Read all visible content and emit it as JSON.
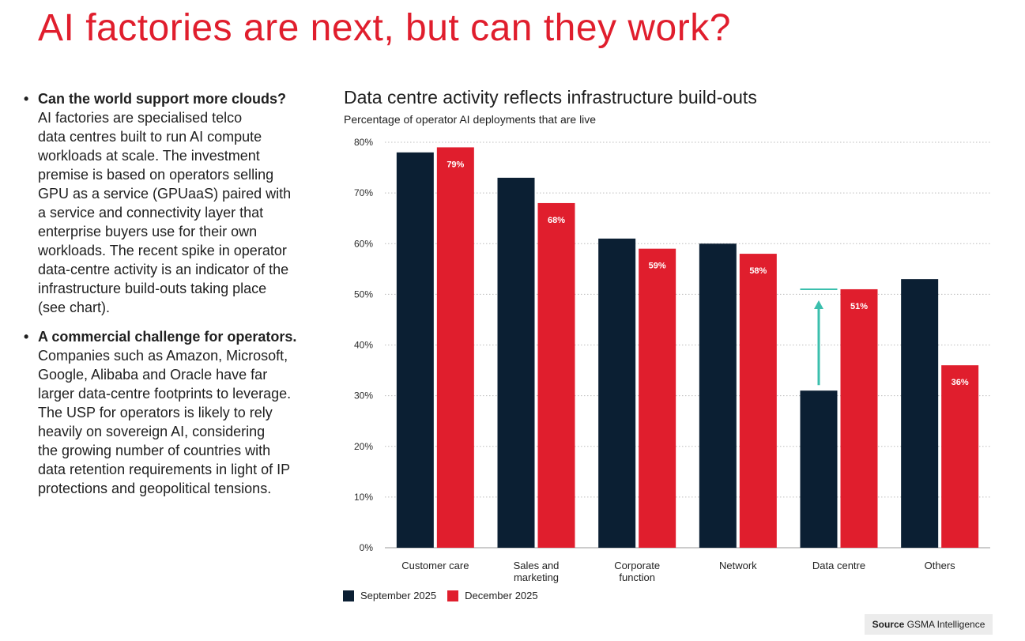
{
  "page": {
    "title": "AI factories are next, but can they work?"
  },
  "bullets": [
    {
      "lead": "Can the world support more clouds?",
      "lines": [
        "AI factories are specialised telco",
        "data centres built to run AI compute",
        "workloads at scale. The investment",
        "premise is based on operators selling",
        "GPU as a service (GPUaaS) paired with",
        "a service and connectivity layer that",
        "enterprise buyers use for their own",
        "workloads. The recent spike in operator",
        "data-centre activity is an indicator of the",
        "infrastructure build-outs taking place",
        "(see chart)."
      ]
    },
    {
      "lead": "A commercial challenge for operators.",
      "lines": [
        "Companies such as Amazon, Microsoft,",
        "Google, Alibaba and Oracle have far",
        "larger data-centre footprints to leverage.",
        "The USP for operators is likely to rely",
        "heavily on sovereign AI, considering",
        "the growing number of countries with",
        "data retention requirements in light of IP",
        "protections and geopolitical tensions."
      ]
    }
  ],
  "source": {
    "label": "Source",
    "value": "GSMA Intelligence"
  },
  "chart_data": {
    "type": "bar",
    "title": "Data centre activity reflects infrastructure build-outs",
    "subtitle": "Percentage of operator AI deployments that are live",
    "categories": [
      [
        "Customer care"
      ],
      [
        "Sales and",
        "marketing"
      ],
      [
        "Corporate",
        "function"
      ],
      [
        "Network"
      ],
      [
        "Data centre"
      ],
      [
        "Others"
      ]
    ],
    "series": [
      {
        "name": "September 2025",
        "color": "#0b1f33",
        "values": [
          78,
          73,
          61,
          60,
          31,
          53
        ]
      },
      {
        "name": "December 2025",
        "color": "#e01e2d",
        "values": [
          79,
          68,
          59,
          58,
          51,
          36
        ],
        "labels": [
          "79%",
          "68%",
          "59%",
          "58%",
          "51%",
          "36%"
        ]
      }
    ],
    "ylim": [
      0,
      80
    ],
    "yticks": [
      0,
      10,
      20,
      30,
      40,
      50,
      60,
      70,
      80
    ],
    "ytick_labels": [
      "0%",
      "10%",
      "20%",
      "30%",
      "40%",
      "50%",
      "60%",
      "70%",
      "80%"
    ],
    "grid": true,
    "annotation": {
      "category_index": 4,
      "from": 31,
      "to": 51,
      "color": "#3bbfad"
    },
    "legend_position": "bottom-left"
  }
}
